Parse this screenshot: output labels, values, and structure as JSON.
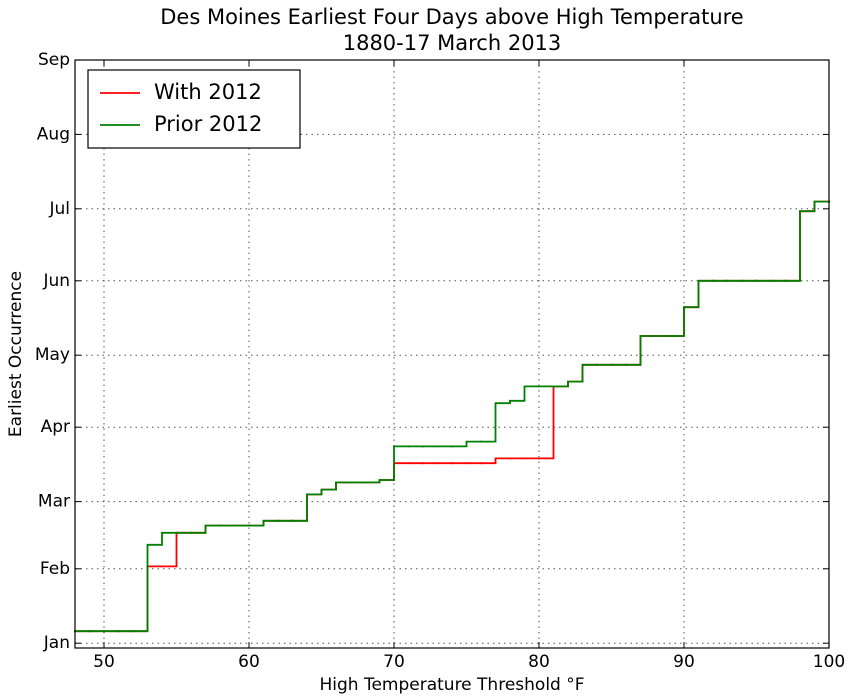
{
  "chart_data": {
    "type": "step",
    "title": "Des Moines Earliest Four Days above High Temperature",
    "subtitle": "1880-17 March 2013",
    "x_label": "High Temperature Threshold °F",
    "y_label": "Earliest Occurrence",
    "x": [
      48,
      49,
      50,
      51,
      52,
      53,
      54,
      55,
      56,
      57,
      58,
      59,
      60,
      61,
      62,
      63,
      64,
      65,
      66,
      67,
      68,
      69,
      70,
      71,
      72,
      73,
      74,
      75,
      76,
      77,
      78,
      79,
      80,
      81,
      82,
      83,
      84,
      85,
      86,
      87,
      88,
      89,
      90,
      91,
      92,
      93,
      94,
      95,
      96,
      97,
      98,
      99,
      100
    ],
    "series": [
      {
        "name": "With 2012",
        "color": "#ff0000",
        "values": [
          6,
          6,
          6,
          6,
          6,
          33,
          33,
          47,
          47,
          50,
          50,
          50,
          50,
          52,
          52,
          52,
          63,
          65,
          68,
          68,
          68,
          69,
          76,
          76,
          76,
          76,
          76,
          76,
          76,
          78,
          78,
          78,
          78,
          108,
          110,
          117,
          117,
          117,
          117,
          129,
          129,
          129,
          141,
          152,
          152,
          152,
          152,
          152,
          152,
          152,
          181,
          185,
          185
        ]
      },
      {
        "name": "Prior 2012",
        "color": "#008000",
        "values": [
          6,
          6,
          6,
          6,
          6,
          42,
          47,
          47,
          47,
          50,
          50,
          50,
          50,
          52,
          52,
          52,
          63,
          65,
          68,
          68,
          68,
          69,
          83,
          83,
          83,
          83,
          83,
          85,
          85,
          101,
          102,
          108,
          108,
          108,
          110,
          117,
          117,
          117,
          117,
          129,
          129,
          129,
          141,
          152,
          152,
          152,
          152,
          152,
          152,
          152,
          181,
          185,
          185
        ]
      }
    ],
    "xlim": [
      48,
      100
    ],
    "xticks": [
      50,
      60,
      70,
      80,
      90,
      100
    ],
    "ylim": [
      -1,
      244
    ],
    "yticks": [
      {
        "value": 1,
        "label": "Jan"
      },
      {
        "value": 32,
        "label": "Feb"
      },
      {
        "value": 60,
        "label": "Mar"
      },
      {
        "value": 91,
        "label": "Apr"
      },
      {
        "value": 121,
        "label": "May"
      },
      {
        "value": 152,
        "label": "Jun"
      },
      {
        "value": 182,
        "label": "Jul"
      },
      {
        "value": 213,
        "label": "Aug"
      },
      {
        "value": 244,
        "label": "Sep"
      }
    ],
    "grid": true,
    "legend": "upper-left"
  }
}
